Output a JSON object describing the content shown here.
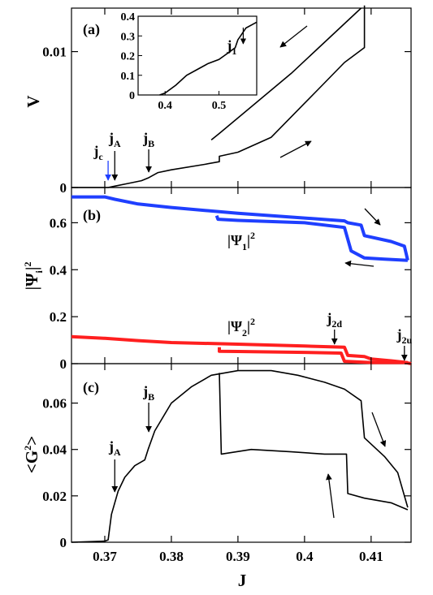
{
  "chart_data": [
    {
      "panel": "(a)",
      "type": "line",
      "ylabel": "V",
      "xlim": [
        0.365,
        0.416
      ],
      "ylim": [
        0,
        0.0132
      ],
      "yticks": [
        0,
        0.01
      ],
      "ytick_labels": [
        "0",
        "0.01"
      ],
      "series": [
        {
          "points": [
            [
              0.365,
              0
            ],
            [
              0.3705,
              0
            ],
            [
              0.3715,
              0.0001
            ],
            [
              0.3735,
              0.0003
            ],
            [
              0.3755,
              0.0005
            ],
            [
              0.3765,
              0.0007
            ],
            [
              0.378,
              0.0011
            ],
            [
              0.38,
              0.0013
            ],
            [
              0.385,
              0.0017
            ],
            [
              0.3872,
              0.0019
            ],
            [
              0.3872,
              0.0023
            ],
            [
              0.39,
              0.0026
            ],
            [
              0.395,
              0.0037
            ],
            [
              0.398,
              0.0052
            ],
            [
              0.402,
              0.0072
            ],
            [
              0.406,
              0.0092
            ],
            [
              0.409,
              0.0103
            ],
            [
              0.409,
              0.0134
            ]
          ]
        },
        {
          "points": [
            [
              0.4085,
              0.0132
            ],
            [
              0.398,
              0.0084
            ],
            [
              0.3875,
              0.0041
            ],
            [
              0.387,
              0.0039
            ],
            [
              0.386,
              0.0035
            ]
          ]
        }
      ],
      "inset": {
        "xlim": [
          0.35,
          0.57
        ],
        "ylim": [
          0,
          0.4
        ],
        "xticks": [
          0.4,
          0.5
        ],
        "xtick_labels": [
          "0.4",
          "0.5"
        ],
        "yticks": [
          0,
          0.1,
          0.2,
          0.3,
          0.4
        ],
        "ytick_labels": [
          "0",
          "0.1",
          "0.2",
          "0.3",
          "0.4"
        ],
        "points": [
          [
            0.39,
            0
          ],
          [
            0.4,
            0.01
          ],
          [
            0.42,
            0.05
          ],
          [
            0.44,
            0.1
          ],
          [
            0.46,
            0.13
          ],
          [
            0.48,
            0.16
          ],
          [
            0.5,
            0.18
          ],
          [
            0.51,
            0.2
          ],
          [
            0.52,
            0.22
          ],
          [
            0.53,
            0.24
          ],
          [
            0.535,
            0.28
          ],
          [
            0.54,
            0.3
          ],
          [
            0.55,
            0.34
          ],
          [
            0.57,
            0.37
          ]
        ]
      },
      "annotations": [
        {
          "base": "j",
          "sub": "c",
          "x": 0.3705
        },
        {
          "base": "j",
          "sub": "A",
          "x": 0.3715
        },
        {
          "base": "j",
          "sub": "B",
          "x": 0.3766
        },
        {
          "base": "j",
          "sub": "1",
          "x": 0.545
        }
      ]
    },
    {
      "panel": "(b)",
      "type": "line",
      "ylabel_base": "|Ψ",
      "ylabel_sub": "i",
      "ylabel_end": "|",
      "ylabel_sup": "2",
      "xlim": [
        0.365,
        0.416
      ],
      "ylim": [
        0,
        0.75
      ],
      "yticks": [
        0,
        0.2,
        0.4,
        0.6
      ],
      "ytick_labels": [
        "0",
        "0.2",
        "0.4",
        "0.6"
      ],
      "series": [
        {
          "label_base": "|Ψ",
          "label_sub": "1",
          "label_sup": "2",
          "color": "#1f3fff",
          "points": [
            [
              0.365,
              0.71
            ],
            [
              0.37,
              0.71
            ],
            [
              0.3715,
              0.7
            ],
            [
              0.375,
              0.68
            ],
            [
              0.38,
              0.665
            ],
            [
              0.39,
              0.64
            ],
            [
              0.4,
              0.62
            ],
            [
              0.406,
              0.608
            ],
            [
              0.4065,
              0.6
            ],
            [
              0.4085,
              0.59
            ],
            [
              0.409,
              0.545
            ],
            [
              0.413,
              0.52
            ],
            [
              0.415,
              0.5
            ],
            [
              0.4155,
              0.44
            ]
          ]
        },
        {
          "color": "#1f3fff",
          "points": [
            [
              0.4155,
              0.44
            ],
            [
              0.412,
              0.445
            ],
            [
              0.409,
              0.45
            ],
            [
              0.407,
              0.48
            ],
            [
              0.406,
              0.58
            ],
            [
              0.4,
              0.6
            ],
            [
              0.39,
              0.61
            ],
            [
              0.387,
              0.615
            ],
            [
              0.3868,
              0.63
            ]
          ]
        },
        {
          "label_base": "|Ψ",
          "label_sub": "2",
          "label_sup": "2",
          "color": "#ff1f1f",
          "points": [
            [
              0.365,
              0.115
            ],
            [
              0.37,
              0.108
            ],
            [
              0.375,
              0.098
            ],
            [
              0.38,
              0.09
            ],
            [
              0.39,
              0.083
            ],
            [
              0.4,
              0.075
            ],
            [
              0.406,
              0.07
            ],
            [
              0.4065,
              0.035
            ],
            [
              0.409,
              0.03
            ],
            [
              0.41,
              0.02
            ],
            [
              0.413,
              0.012
            ],
            [
              0.415,
              0.006
            ],
            [
              0.416,
              0
            ]
          ]
        },
        {
          "color": "#ff1f1f",
          "points": [
            [
              0.4155,
              0.005
            ],
            [
              0.41,
              0.005
            ],
            [
              0.409,
              0.006
            ],
            [
              0.406,
              0.01
            ],
            [
              0.4055,
              0.045
            ],
            [
              0.4,
              0.048
            ],
            [
              0.39,
              0.052
            ],
            [
              0.3872,
              0.053
            ],
            [
              0.3872,
              0.07
            ]
          ]
        }
      ],
      "annotations": [
        {
          "base": "j",
          "sub": "2d",
          "x": 0.4045
        },
        {
          "base": "j",
          "sub": "2u",
          "x": 0.415
        }
      ]
    },
    {
      "panel": "(c)",
      "type": "line",
      "ylabel": "<G",
      "ylabel_sup": "2",
      "ylabel_end": ">",
      "xlabel": "J",
      "xlim": [
        0.365,
        0.416
      ],
      "ylim": [
        0,
        0.077
      ],
      "xticks": [
        0.37,
        0.38,
        0.39,
        0.4,
        0.41
      ],
      "xtick_labels": [
        "0.37",
        "0.38",
        "0.39",
        "0.4",
        "0.41"
      ],
      "yticks": [
        0,
        0.02,
        0.04,
        0.06
      ],
      "ytick_labels": [
        "0",
        "0.02",
        "0.04",
        "0.06"
      ],
      "series": [
        {
          "points": [
            [
              0.365,
              0
            ],
            [
              0.37,
              0.0005
            ],
            [
              0.3705,
              0.001
            ],
            [
              0.371,
              0.012
            ],
            [
              0.372,
              0.022
            ],
            [
              0.373,
              0.028
            ],
            [
              0.3745,
              0.033
            ],
            [
              0.376,
              0.0355
            ],
            [
              0.3765,
              0.04
            ],
            [
              0.3775,
              0.048
            ],
            [
              0.38,
              0.06
            ],
            [
              0.383,
              0.067
            ],
            [
              0.386,
              0.072
            ],
            [
              0.39,
              0.074
            ],
            [
              0.395,
              0.074
            ],
            [
              0.399,
              0.072
            ],
            [
              0.403,
              0.069
            ],
            [
              0.406,
              0.066
            ],
            [
              0.4085,
              0.061
            ],
            [
              0.409,
              0.045
            ],
            [
              0.412,
              0.037
            ],
            [
              0.414,
              0.03
            ],
            [
              0.415,
              0.02
            ],
            [
              0.4155,
              0.015
            ]
          ]
        },
        {
          "points": [
            [
              0.4155,
              0.014
            ],
            [
              0.413,
              0.017
            ],
            [
              0.409,
              0.019
            ],
            [
              0.4065,
              0.021
            ],
            [
              0.4063,
              0.038
            ],
            [
              0.403,
              0.038
            ],
            [
              0.398,
              0.039
            ],
            [
              0.392,
              0.04
            ],
            [
              0.3875,
              0.038
            ],
            [
              0.3872,
              0.073
            ]
          ]
        }
      ],
      "annotations": [
        {
          "base": "j",
          "sub": "A",
          "x": 0.3715
        },
        {
          "base": "j",
          "sub": "B",
          "x": 0.3766
        }
      ]
    }
  ]
}
